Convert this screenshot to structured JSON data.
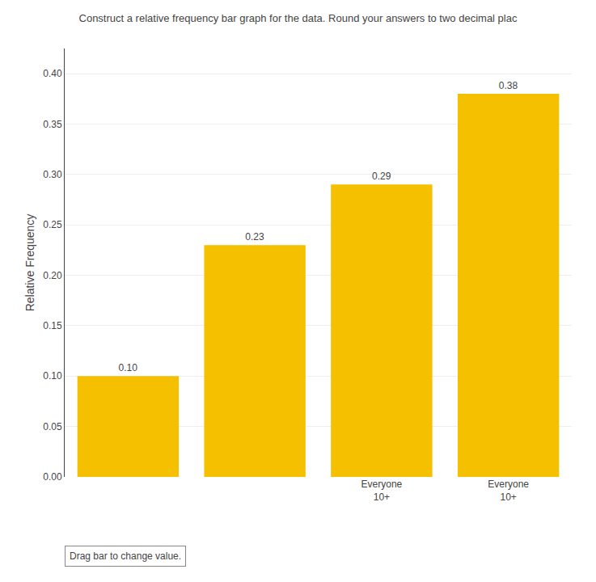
{
  "chart_data": {
    "type": "bar",
    "title": "Construct a relative frequency bar graph for the data. Round your answers to two decimal plac",
    "categories": [
      null,
      null,
      "Everyone\n10+",
      "Everyone\n10+"
    ],
    "values": [
      0.1,
      0.23,
      0.29,
      0.38
    ],
    "value_labels": [
      "0.10",
      "0.23",
      "0.29",
      "0.38"
    ],
    "data_labels": true,
    "color": "#F5C000",
    "ylabel": "Relative Frequency",
    "ylim": [
      0.0,
      0.425
    ],
    "yticks": [
      {
        "value": 0.0,
        "label": "0.00"
      },
      {
        "value": 0.05,
        "label": "0.05"
      },
      {
        "value": 0.1,
        "label": "0.10"
      },
      {
        "value": 0.15,
        "label": "0.15"
      },
      {
        "value": 0.2,
        "label": "0.20"
      },
      {
        "value": 0.25,
        "label": "0.25"
      },
      {
        "value": 0.3,
        "label": "0.30"
      },
      {
        "value": 0.35,
        "label": "0.35"
      },
      {
        "value": 0.4,
        "label": "0.40"
      }
    ],
    "grid": true,
    "annotations": [
      "Drag bar to change value."
    ]
  }
}
